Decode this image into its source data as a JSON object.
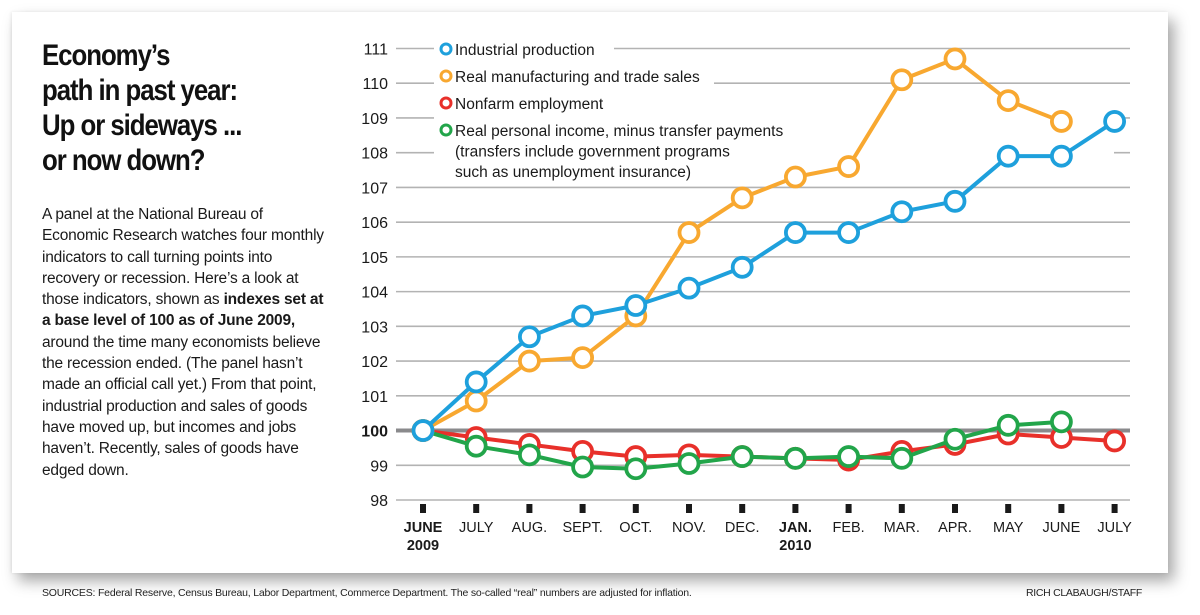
{
  "headline": {
    "lines": [
      "Economy’s",
      "path in past year:",
      "Up or sideways ...",
      "or now down?"
    ]
  },
  "body": {
    "part1": "A panel at the National Bureau of Economic Research watches four monthly indicators to call turning points into recovery or recession. Here’s a look at those indicators, shown as ",
    "bold": "indexes set at a base level of 100 as of June 2009,",
    "part2": " around the time many economists believe the recession ended. (The panel hasn’t made an official call yet.) From that point, industrial production and sales of goods have moved up, but incomes and jobs haven’t. Recently, sales of goods have edged down."
  },
  "footer": {
    "sources": "SOURCES: Federal Reserve, Census Bureau, Labor Department, Commerce Department. The so-called “real” numbers are adjusted for inflation.",
    "credit": "RICH CLABAUGH/STAFF"
  },
  "chart_data": {
    "type": "line",
    "title": "Economy’s path in past year: Up or sideways ... or now down?",
    "xlabel": "",
    "ylabel": "",
    "ylim": [
      98,
      111
    ],
    "yticks": [
      98,
      99,
      100,
      101,
      102,
      103,
      104,
      105,
      106,
      107,
      108,
      109,
      110,
      111
    ],
    "baseline": 100,
    "grid": true,
    "legend_position": "top-left",
    "categories": [
      {
        "label": "JUNE",
        "sub": "2009",
        "bold": true
      },
      {
        "label": "JULY",
        "sub": "",
        "bold": false
      },
      {
        "label": "AUG.",
        "sub": "",
        "bold": false
      },
      {
        "label": "SEPT.",
        "sub": "",
        "bold": false
      },
      {
        "label": "OCT.",
        "sub": "",
        "bold": false
      },
      {
        "label": "NOV.",
        "sub": "",
        "bold": false
      },
      {
        "label": "DEC.",
        "sub": "",
        "bold": false
      },
      {
        "label": "JAN.",
        "sub": "2010",
        "bold": true
      },
      {
        "label": "FEB.",
        "sub": "",
        "bold": false
      },
      {
        "label": "MAR.",
        "sub": "",
        "bold": false
      },
      {
        "label": "APR.",
        "sub": "",
        "bold": false
      },
      {
        "label": "MAY",
        "sub": "",
        "bold": false
      },
      {
        "label": "JUNE",
        "sub": "",
        "bold": false
      },
      {
        "label": "JULY",
        "sub": "",
        "bold": false
      }
    ],
    "series": [
      {
        "name": "Industrial production",
        "key": "industrial-production",
        "color": "#1ea0dc",
        "values": [
          100,
          101.4,
          102.7,
          103.3,
          103.6,
          104.1,
          104.7,
          105.7,
          105.7,
          106.3,
          106.6,
          107.9,
          107.9,
          108.9
        ]
      },
      {
        "name": "Real manufacturing and trade sales",
        "key": "real-manufacturing-trade-sales",
        "color": "#f8a830",
        "values": [
          100,
          100.85,
          102.0,
          102.1,
          103.3,
          105.7,
          106.7,
          107.3,
          107.6,
          110.1,
          110.7,
          109.5,
          108.9,
          null
        ]
      },
      {
        "name": "Nonfarm employment",
        "key": "nonfarm-employment",
        "color": "#e8302a",
        "values": [
          100,
          99.8,
          99.6,
          99.4,
          99.25,
          99.3,
          99.25,
          99.2,
          99.15,
          99.4,
          99.6,
          99.9,
          99.8,
          99.7
        ]
      },
      {
        "name": "Real personal income, minus transfer payments",
        "note": [
          "(transfers include government programs",
          "such as unemployment insurance)"
        ],
        "key": "real-personal-income",
        "color": "#22a54a",
        "values": [
          100,
          99.55,
          99.3,
          98.95,
          98.9,
          99.05,
          99.25,
          99.2,
          99.25,
          99.2,
          99.75,
          100.15,
          100.25,
          null
        ]
      }
    ]
  }
}
